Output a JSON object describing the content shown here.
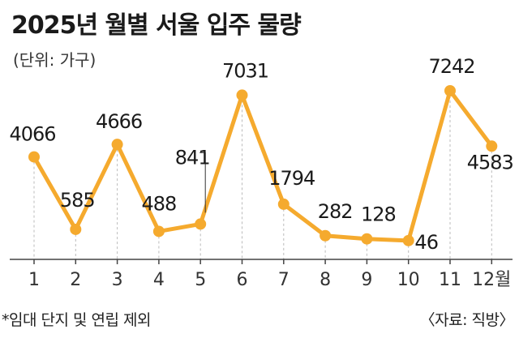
{
  "header": {
    "title": "2025년 월별 서울 입주 물량",
    "unit": "(단위: 가구)"
  },
  "footer": {
    "note": "*임대 단지 및 연립 제외",
    "source": "〈자료: 직방〉"
  },
  "colors": {
    "line": "#F5AA2E",
    "marker": "#F5AA2E",
    "axis": "#444444",
    "dropline": "#bbbbbb"
  },
  "chart_data": {
    "type": "line",
    "title": "2025년 월별 서울 입주 물량",
    "ylabel": "(단위: 가구)",
    "categories": [
      "1",
      "2",
      "3",
      "4",
      "5",
      "6",
      "7",
      "8",
      "9",
      "10",
      "11",
      "12월"
    ],
    "values": [
      4066,
      585,
      4666,
      488,
      841,
      7031,
      1794,
      282,
      128,
      46,
      7242,
      4583
    ],
    "labels": [
      "4066",
      "585",
      "4666",
      "488",
      "841",
      "7031",
      "1794",
      "282",
      "128",
      "46",
      "7242",
      "4583"
    ],
    "grid": false
  }
}
